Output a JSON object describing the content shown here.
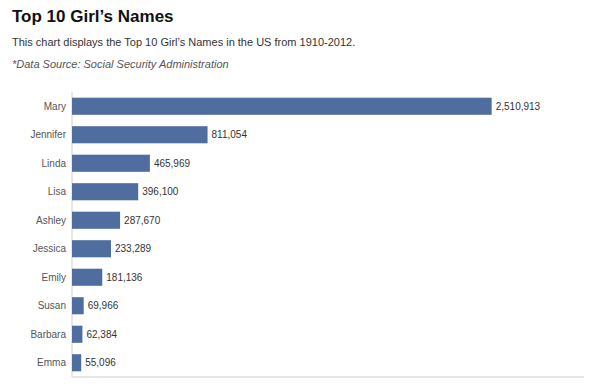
{
  "chart_data": {
    "type": "bar",
    "orientation": "horizontal",
    "title": "Top 10 Girl’s Names",
    "subtitle": "This chart displays the Top 10 Girl’s Names in the US from 1910-2012.",
    "annotations": [
      "*Data Source: Social Security Administration"
    ],
    "categories": [
      "Mary",
      "Jennifer",
      "Linda",
      "Lisa",
      "Ashley",
      "Jessica",
      "Emily",
      "Susan",
      "Barbara",
      "Emma"
    ],
    "values": [
      2510913,
      811054,
      465969,
      396100,
      287670,
      233289,
      181136,
      69966,
      62384,
      55096
    ],
    "value_labels": [
      "2,510,913",
      "811,054",
      "465,969",
      "396,100",
      "287,670",
      "233,289",
      "181,136",
      "69,966",
      "62,384",
      "55,096"
    ],
    "data_labels": true,
    "color": "#4f6d9e",
    "xlim": [
      0,
      3063313.86
    ],
    "grid": false,
    "tick_labels": "y"
  }
}
